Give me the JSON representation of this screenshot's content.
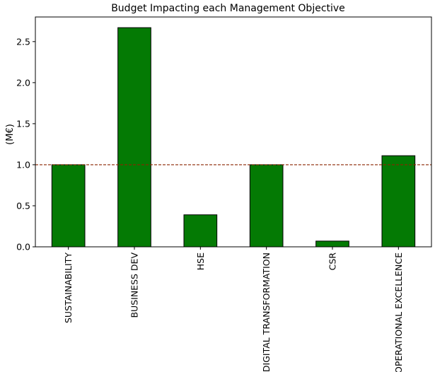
{
  "chart_data": {
    "type": "bar",
    "title": "Budget Impacting each Management Objective",
    "xlabel": "",
    "ylabel": "(M€)",
    "categories": [
      "SUSTAINABILITY",
      "BUSINESS DEV",
      "HSE",
      "DIGITAL TRANSFORMATION",
      "CSR",
      "OPERATIONAL EXCELLENCE"
    ],
    "values": [
      1.0,
      2.67,
      0.39,
      1.0,
      0.07,
      1.11
    ],
    "ylim": [
      0,
      2.8
    ],
    "yticks": [
      0.0,
      0.5,
      1.0,
      1.5,
      2.0,
      2.5
    ],
    "ytick_labels": [
      "0.0",
      "0.5",
      "1.0",
      "1.5",
      "2.0",
      "2.5"
    ],
    "reference_line": {
      "y": 1.0,
      "style": "dashed",
      "color": "#8b2500"
    },
    "bar_color": "#047a04",
    "bar_edge_color": "#000000",
    "grid": false,
    "legend": "none"
  }
}
